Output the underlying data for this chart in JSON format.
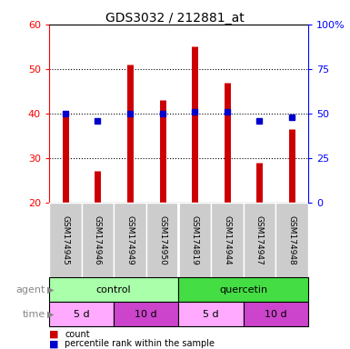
{
  "title": "GDS3032 / 212881_at",
  "samples": [
    "GSM174945",
    "GSM174946",
    "GSM174949",
    "GSM174950",
    "GSM174819",
    "GSM174944",
    "GSM174947",
    "GSM174948"
  ],
  "counts": [
    40.5,
    27.0,
    51.0,
    43.0,
    55.0,
    47.0,
    29.0,
    36.5
  ],
  "percentile_ranks": [
    50,
    46,
    50,
    50,
    51,
    51,
    46,
    48
  ],
  "ylim_left": [
    20,
    60
  ],
  "ylim_right": [
    0,
    100
  ],
  "left_yticks": [
    20,
    30,
    40,
    50,
    60
  ],
  "right_yticks": [
    0,
    25,
    50,
    75,
    100
  ],
  "right_yticklabels": [
    "0",
    "25",
    "50",
    "75",
    "100%"
  ],
  "bar_color": "#cc0000",
  "dot_color": "#0000cc",
  "agent_groups": [
    {
      "label": "control",
      "start": 0,
      "end": 4,
      "color": "#aaffaa"
    },
    {
      "label": "quercetin",
      "start": 4,
      "end": 8,
      "color": "#44dd44"
    }
  ],
  "time_groups": [
    {
      "label": "5 d",
      "start": 0,
      "end": 2,
      "color": "#ffaaff"
    },
    {
      "label": "10 d",
      "start": 2,
      "end": 4,
      "color": "#cc44cc"
    },
    {
      "label": "5 d",
      "start": 4,
      "end": 6,
      "color": "#ffaaff"
    },
    {
      "label": "10 d",
      "start": 6,
      "end": 8,
      "color": "#cc44cc"
    }
  ],
  "label_row_bg": "#cccccc",
  "legend_count_color": "#cc0000",
  "legend_dot_color": "#0000cc"
}
